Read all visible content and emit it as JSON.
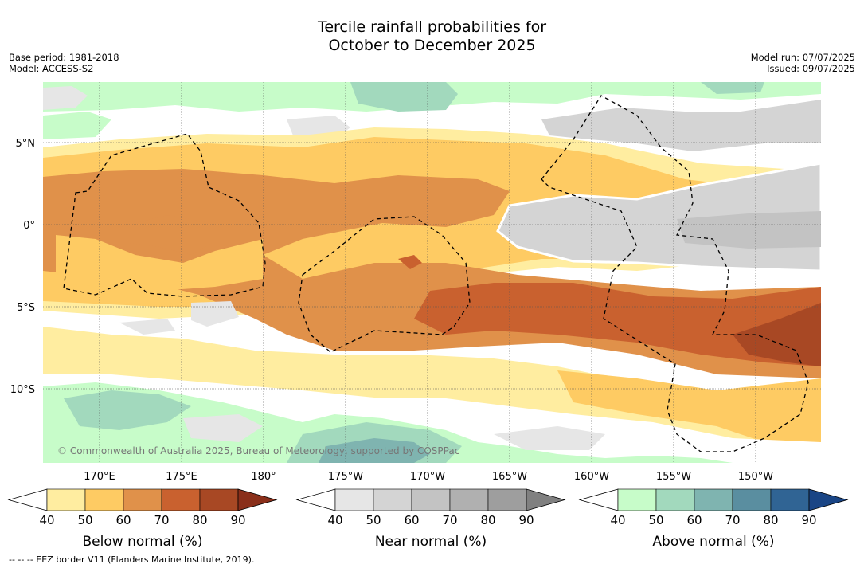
{
  "title": {
    "line1": "Tercile rainfall probabilities for",
    "line2": "October to December 2025"
  },
  "meta_left": {
    "base_period": "Base period: 1981-2018",
    "model": "Model: ACCESS-S2"
  },
  "meta_right": {
    "model_run": "Model run: 07/07/2025",
    "issued": "Issued: 09/07/2025"
  },
  "map": {
    "lat_labels": [
      "5°N",
      "0°",
      "5°S",
      "10°S"
    ],
    "lon_labels": [
      "170°E",
      "175°E",
      "180°",
      "175°W",
      "170°W",
      "165°W",
      "160°W",
      "155°W",
      "150°W"
    ],
    "credit": "© Commonwealth of Australia 2025, Bureau of Meteorology, supported by COSPPac"
  },
  "colorbars": [
    {
      "title": "Below normal (%)",
      "ticks": [
        "40",
        "50",
        "60",
        "70",
        "80",
        "90"
      ],
      "colors": [
        "#ffffff",
        "#ffeda0",
        "#fecb63",
        "#e0914a",
        "#c9612f",
        "#a84824",
        "#8a2f1a"
      ]
    },
    {
      "title": "Near normal (%)",
      "ticks": [
        "40",
        "50",
        "60",
        "70",
        "80",
        "90"
      ],
      "colors": [
        "#ffffff",
        "#e6e6e6",
        "#d4d4d4",
        "#c3c3c3",
        "#b0b0b0",
        "#9e9e9e",
        "#808080"
      ]
    },
    {
      "title": "Above normal (%)",
      "ticks": [
        "40",
        "50",
        "60",
        "70",
        "80",
        "90"
      ],
      "colors": [
        "#ffffff",
        "#c7fcc9",
        "#a2d9bd",
        "#7fb4b0",
        "#5a8ea0",
        "#306494",
        "#1a4585"
      ]
    }
  ],
  "footnote": "-- -- -- EEZ border V11 (Flanders Marine Institute, 2019)."
}
